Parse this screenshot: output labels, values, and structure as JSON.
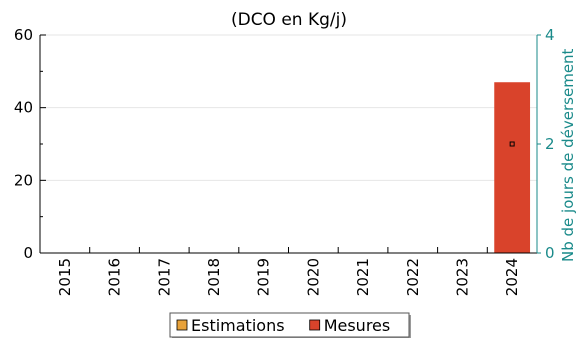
{
  "chart_data": {
    "type": "bar",
    "title": "(DCO en Kg/j)",
    "categories": [
      "2015",
      "2016",
      "2017",
      "2018",
      "2019",
      "2020",
      "2021",
      "2022",
      "2023",
      "2024"
    ],
    "series": [
      {
        "name": "Estimations",
        "color": "#e8a23a",
        "values": [
          0,
          0,
          0,
          0,
          0,
          0,
          0,
          0,
          0,
          0
        ]
      },
      {
        "name": "Mesures",
        "color": "#d9432b",
        "values": [
          0,
          0,
          0,
          0,
          0,
          0,
          0,
          0,
          0,
          47
        ]
      }
    ],
    "ylim": [
      0,
      60
    ],
    "yticks": [
      0,
      20,
      40,
      60
    ],
    "y2label": "Nb de jours de déversement",
    "y2lim": [
      0,
      4
    ],
    "y2ticks": [
      0,
      2,
      4
    ],
    "y2color": "#1a8a8a",
    "secondary_points": [
      {
        "category": "2024",
        "value": 2
      }
    ],
    "grid": true,
    "legend_position": "bottom-center"
  }
}
